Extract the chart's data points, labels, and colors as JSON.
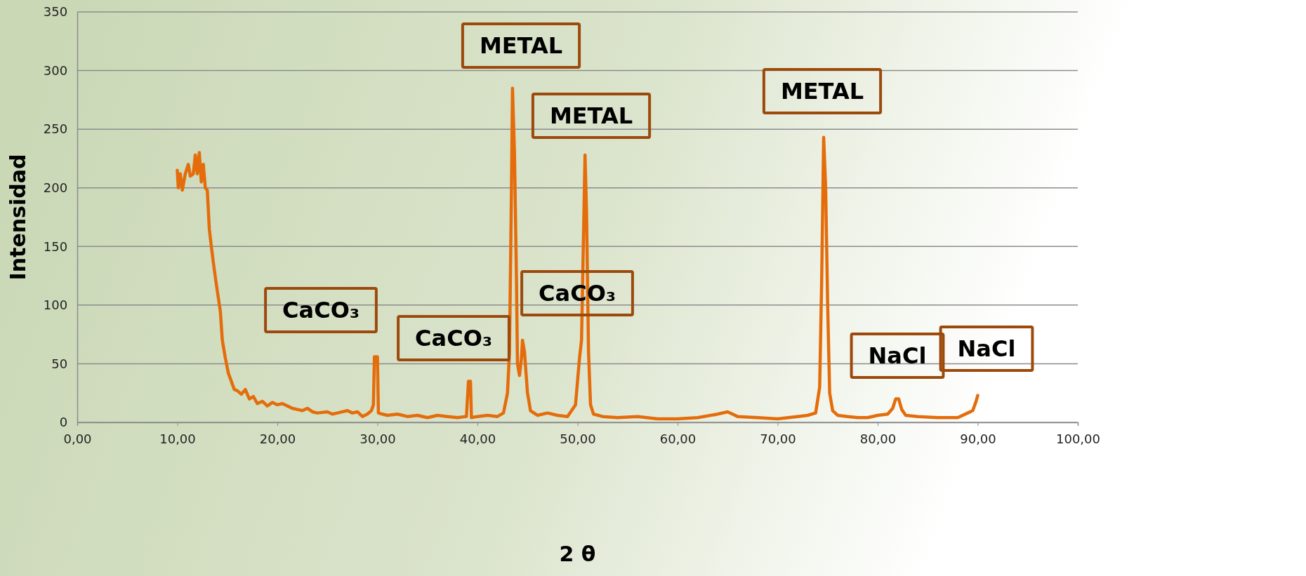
{
  "chart_data": {
    "type": "line",
    "xlabel": "2 θ",
    "ylabel": "Intensidad",
    "xlim": [
      0,
      100
    ],
    "ylim": [
      0,
      350
    ],
    "xticks": [
      {
        "value": 0,
        "label": "0,00"
      },
      {
        "value": 10,
        "label": "10,00"
      },
      {
        "value": 20,
        "label": "20,00"
      },
      {
        "value": 30,
        "label": "30,00"
      },
      {
        "value": 40,
        "label": "40,00"
      },
      {
        "value": 50,
        "label": "50,00"
      },
      {
        "value": 60,
        "label": "60,00"
      },
      {
        "value": 70,
        "label": "70,00"
      },
      {
        "value": 80,
        "label": "80,00"
      },
      {
        "value": 90,
        "label": "90,00"
      },
      {
        "value": 100,
        "label": "100,00"
      }
    ],
    "yticks": [
      0,
      50,
      100,
      150,
      200,
      250,
      300,
      350
    ],
    "grid": "y",
    "marker": "none",
    "line_style": "solid",
    "series": [
      {
        "color": "#e46c0a",
        "x": [
          10.0,
          10.1,
          10.3,
          10.5,
          10.8,
          11.1,
          11.3,
          11.6,
          11.8,
          12.0,
          12.2,
          12.4,
          12.6,
          12.8,
          13.0,
          13.2,
          13.4,
          13.7,
          14.0,
          14.3,
          14.5,
          14.8,
          15.1,
          15.4,
          15.7,
          16.0,
          16.4,
          16.8,
          17.2,
          17.6,
          18.0,
          18.5,
          19.0,
          19.5,
          20.0,
          20.5,
          21.0,
          21.5,
          22.0,
          22.5,
          23.0,
          23.5,
          24.0,
          25.0,
          25.5,
          26.0,
          27.0,
          27.5,
          28.0,
          28.5,
          29.0,
          29.4,
          29.6,
          29.7,
          30.0,
          30.1,
          30.5,
          31.0,
          32.0,
          33.0,
          34.0,
          35.0,
          36.0,
          37.0,
          38.0,
          38.9,
          39.1,
          39.3,
          39.4,
          40.0,
          41.0,
          42.0,
          42.6,
          43.0,
          43.2,
          43.4,
          43.5,
          43.7,
          43.9,
          44.0,
          44.2,
          44.4,
          44.5,
          44.7,
          45.0,
          45.3,
          46.0,
          47.0,
          48.0,
          49.0,
          49.8,
          50.2,
          50.4,
          50.6,
          50.75,
          50.9,
          51.1,
          51.3,
          51.6,
          52.5,
          54.0,
          56.0,
          58.0,
          60.0,
          62.0,
          64.0,
          65.0,
          66.0,
          68.0,
          70.0,
          72.0,
          73.0,
          73.8,
          74.2,
          74.4,
          74.6,
          74.8,
          75.0,
          75.2,
          75.5,
          76.0,
          77.0,
          78.0,
          79.0,
          80.0,
          81.0,
          81.5,
          81.8,
          82.1,
          82.4,
          82.8,
          84.0,
          86.0,
          88.0,
          89.0,
          89.5,
          89.8,
          90.0
        ],
        "values": [
          215,
          200,
          212,
          198,
          212,
          220,
          210,
          212,
          228,
          212,
          230,
          205,
          220,
          200,
          198,
          165,
          150,
          130,
          112,
          95,
          70,
          55,
          42,
          35,
          28,
          27,
          24,
          28,
          20,
          22,
          16,
          18,
          14,
          17,
          15,
          16,
          14,
          12,
          11,
          10,
          12,
          9,
          8,
          9,
          7,
          8,
          10,
          8,
          9,
          5,
          7,
          10,
          15,
          56,
          56,
          8,
          7,
          6,
          7,
          5,
          6,
          4,
          6,
          5,
          4,
          5,
          35,
          35,
          4,
          5,
          6,
          5,
          8,
          25,
          60,
          200,
          285,
          230,
          120,
          50,
          40,
          55,
          70,
          60,
          25,
          10,
          6,
          8,
          6,
          5,
          15,
          55,
          70,
          160,
          228,
          180,
          60,
          15,
          7,
          5,
          4,
          5,
          3,
          3,
          4,
          7,
          9,
          5,
          4,
          3,
          5,
          6,
          8,
          30,
          120,
          243,
          200,
          100,
          25,
          10,
          6,
          5,
          4,
          4,
          6,
          7,
          12,
          20,
          20,
          11,
          6,
          5,
          4,
          4,
          8,
          10,
          17,
          23
        ]
      }
    ],
    "annotations": [
      "METAL",
      "METAL",
      "METAL",
      "CaCO₃",
      "CaCO₃",
      "CaCO₃",
      "NaCl",
      "NaCl"
    ]
  }
}
